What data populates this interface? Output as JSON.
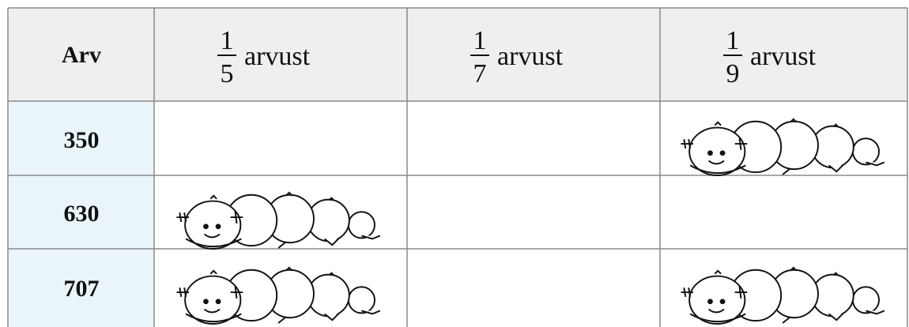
{
  "table": {
    "header": [
      {
        "text": "Arv"
      },
      {
        "numerator": "1",
        "denominator": "5",
        "text": "arvust"
      },
      {
        "numerator": "1",
        "denominator": "7",
        "text": "arvust"
      },
      {
        "numerator": "1",
        "denominator": "9",
        "text": "arvust"
      }
    ],
    "rows": [
      "350",
      "630",
      "707"
    ]
  }
}
